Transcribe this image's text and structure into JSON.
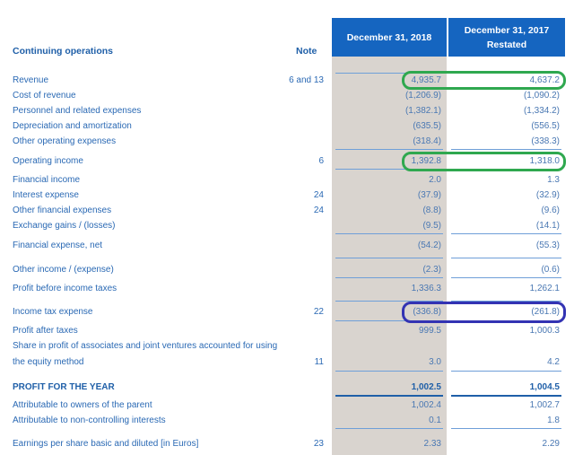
{
  "header": {
    "section_title": "Continuing operations",
    "note_title": "Note",
    "col_2018": "December 31, 2018",
    "col_2017_line1": "December 31, 2017",
    "col_2017_line2": "Restated"
  },
  "rows": [
    {
      "label": "Revenue",
      "note": "6 and 13",
      "v2018": "4,935.7",
      "v2017": "4,637.2"
    },
    {
      "label": "Cost of revenue",
      "note": "",
      "v2018": "(1,206.9)",
      "v2017": "(1,090.2)"
    },
    {
      "label": "Personnel and related expenses",
      "note": "",
      "v2018": "(1,382.1)",
      "v2017": "(1,334.2)"
    },
    {
      "label": "Depreciation and amortization",
      "note": "",
      "v2018": "(635.5)",
      "v2017": "(556.5)"
    },
    {
      "label": "Other operating expenses",
      "note": "",
      "v2018": "(318.4)",
      "v2017": "(338.3)"
    },
    {
      "label": "Operating income",
      "note": "6",
      "v2018": "1,392.8",
      "v2017": "1,318.0"
    },
    {
      "label": "Financial income",
      "note": "",
      "v2018": "2.0",
      "v2017": "1.3"
    },
    {
      "label": "Interest expense",
      "note": "24",
      "v2018": "(37.9)",
      "v2017": "(32.9)"
    },
    {
      "label": "Other financial expenses",
      "note": "24",
      "v2018": "(8.8)",
      "v2017": "(9.6)"
    },
    {
      "label": "Exchange gains / (losses)",
      "note": "",
      "v2018": "(9.5)",
      "v2017": "(14.1)"
    },
    {
      "label": "Financial expense, net",
      "note": "",
      "v2018": "(54.2)",
      "v2017": "(55.3)"
    },
    {
      "label": "Other income / (expense)",
      "note": "",
      "v2018": "(2.3)",
      "v2017": "(0.6)"
    },
    {
      "label": "Profit before income taxes",
      "note": "",
      "v2018": "1,336.3",
      "v2017": "1,262.1"
    },
    {
      "label": "Income tax expense",
      "note": "22",
      "v2018": "(336.8)",
      "v2017": "(261.8)"
    },
    {
      "label": "Profit after taxes",
      "note": "",
      "v2018": "999.5",
      "v2017": "1,000.3"
    },
    {
      "label": "Share in profit of associates and joint ventures accounted for using",
      "note": "",
      "v2018": "",
      "v2017": ""
    },
    {
      "label": "the equity method",
      "note": "11",
      "v2018": "3.0",
      "v2017": "4.2"
    },
    {
      "label": "PROFIT FOR THE YEAR",
      "note": "",
      "v2018": "1,002.5",
      "v2017": "1,004.5"
    },
    {
      "label": "Attributable to owners of the parent",
      "note": "",
      "v2018": "1,002.4",
      "v2017": "1,002.7"
    },
    {
      "label": "Attributable to non-controlling interests",
      "note": "",
      "v2018": "0.1",
      "v2017": "1.8"
    },
    {
      "label": "Earnings per share basic and diluted [in Euros]",
      "note": "23",
      "v2018": "2.33",
      "v2017": "2.29"
    }
  ]
}
